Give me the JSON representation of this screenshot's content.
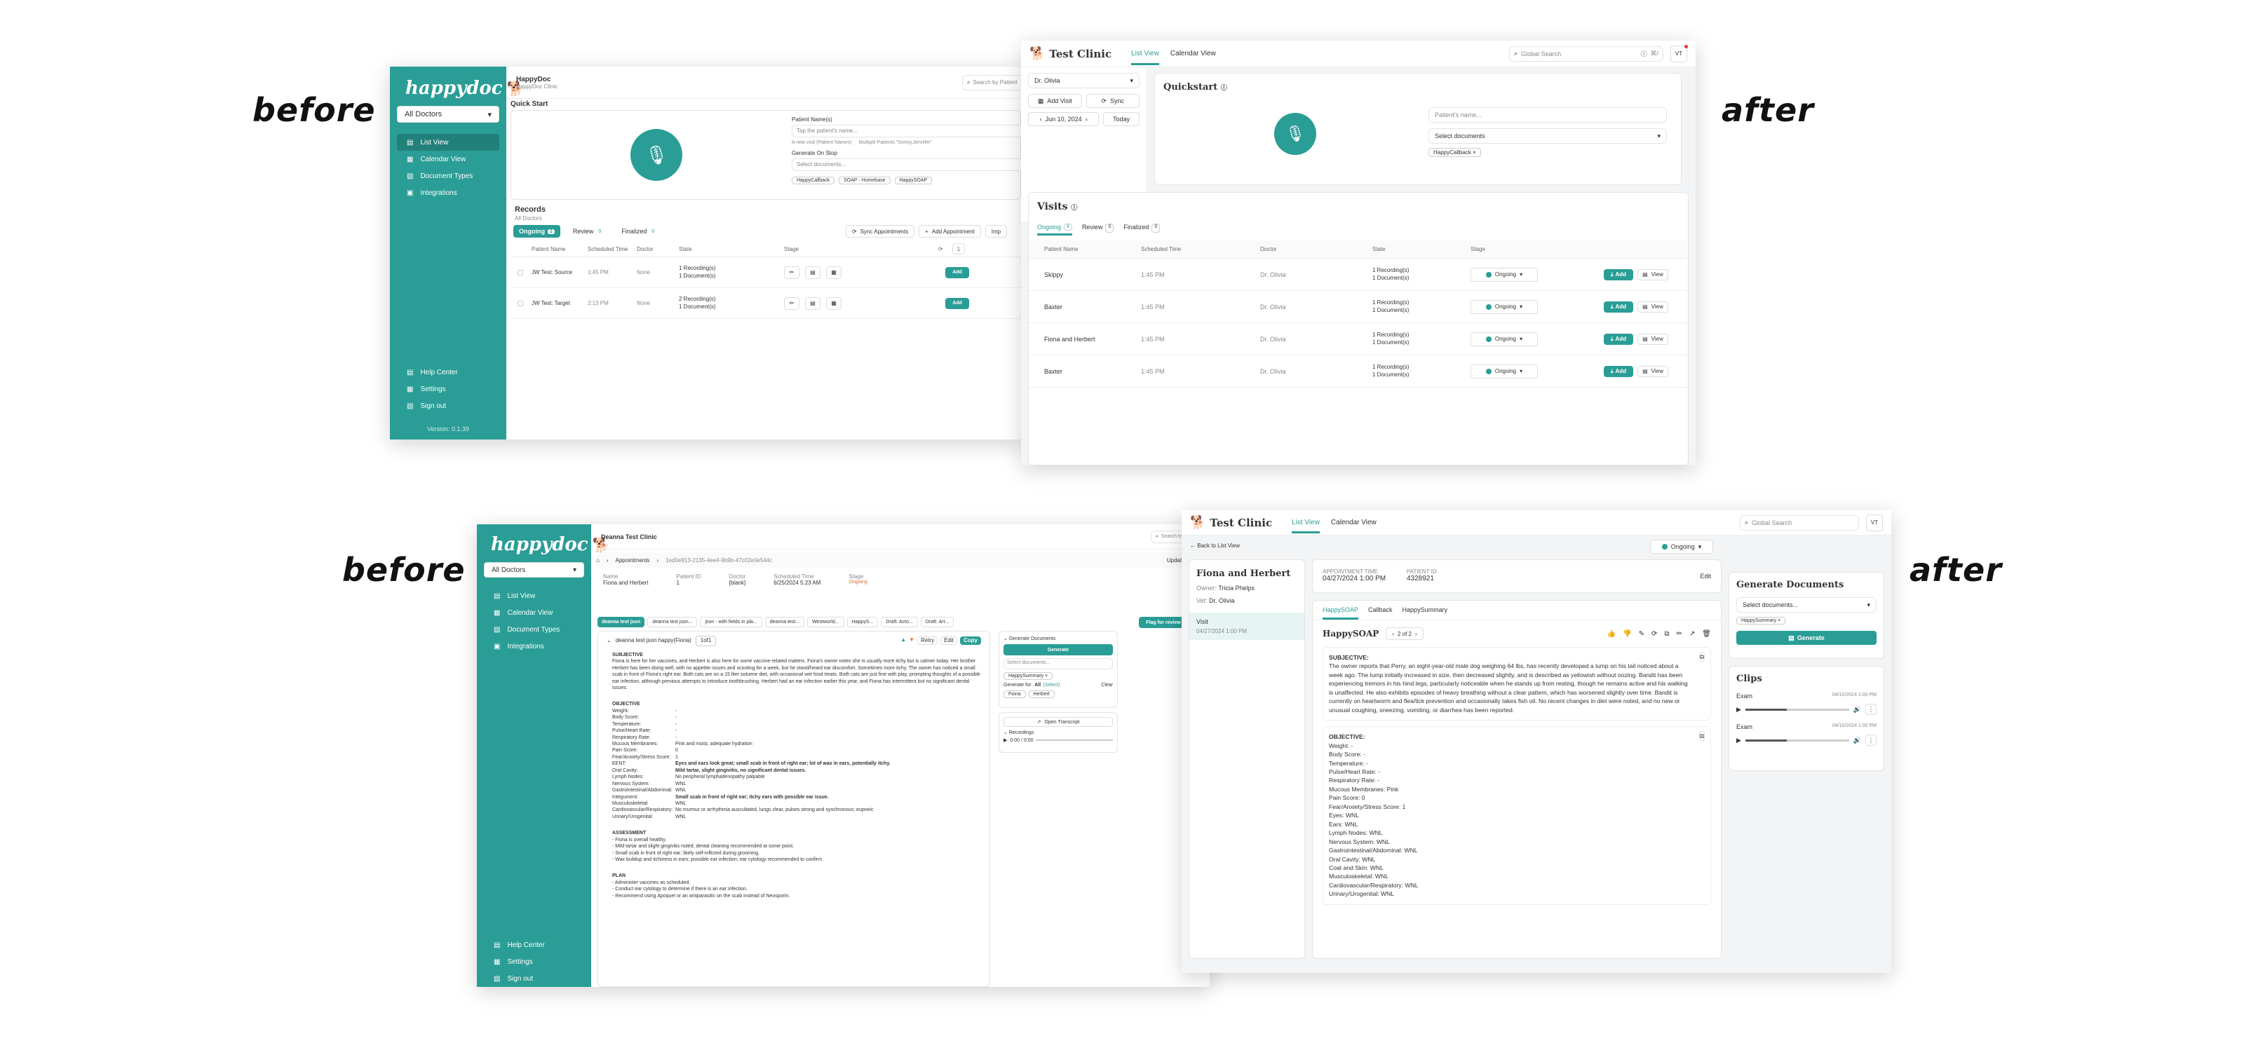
{
  "labels": {
    "before": "before",
    "after": "after"
  },
  "p1": {
    "logo": "happydoc",
    "doctor_select": "All Doctors",
    "nav": [
      {
        "label": "List View"
      },
      {
        "label": "Calendar View"
      },
      {
        "label": "Document Types"
      },
      {
        "label": "Integrations"
      }
    ],
    "nav_bottom": [
      {
        "label": "Help Center"
      },
      {
        "label": "Settings"
      },
      {
        "label": "Sign out"
      }
    ],
    "version": "Version: 0.1.39",
    "header_title": "HappyDoc",
    "header_sub": "HappyDoc Clinic",
    "search_placeholder": "Search by Patient",
    "quickstart": "Quick Start",
    "patient_label": "Patient Name(s)",
    "patient_placeholder": "Tap the patient's name...",
    "radio1": "A new visit (Patient Names)",
    "radio2": "Multiple Patients \"Sonny,Jennifer\"",
    "generate_label": "Generate On Stop",
    "doc_placeholder": "Select documents...",
    "doc_tags": [
      "HappyCallback",
      "SOAP - Homebase",
      "HappySOAP"
    ],
    "records": "Records",
    "records_sub": "All Doctors",
    "tabs": [
      {
        "label": "Ongoing",
        "count": "2"
      },
      {
        "label": "Review",
        "count": "0"
      },
      {
        "label": "Finalized",
        "count": "0"
      }
    ],
    "sync_btn": "Sync Appointments",
    "add_btn": "Add Appointment",
    "import_btn": "Imp",
    "columns": [
      "Patient Name",
      "Scheduled Time",
      "Doctor",
      "State",
      "Stage"
    ],
    "page": "1",
    "rows": [
      {
        "name": "JW Test: Source",
        "time": "1:45 PM",
        "doctor": "None",
        "state1": "1 Recording(s)",
        "state2": "1 Document(s)",
        "add": "Add"
      },
      {
        "name": "JW Test: Target",
        "time": "2:13 PM",
        "doctor": "None",
        "state1": "2 Recording(s)",
        "state2": "1 Document(s)",
        "add": "Add"
      }
    ]
  },
  "p2": {
    "clinic": "Test Clinic",
    "tab_list": "List View",
    "tab_cal": "Calendar View",
    "search_placeholder": "Global Search",
    "shortcut": "⌘/",
    "avatar": "VT",
    "doctor": "Dr. Olivia",
    "add_visit": "Add Visit",
    "sync": "Sync",
    "date": "Jun 10, 2024",
    "today": "Today",
    "quickstart": "Quickstart",
    "patient_placeholder": "Patient's name...",
    "doc_placeholder": "Select documents",
    "doc_tag": "HappyCallback",
    "visits": "Visits",
    "tabs": [
      {
        "label": "Ongoing",
        "count": "4"
      },
      {
        "label": "Review",
        "count": "0"
      },
      {
        "label": "Finalized",
        "count": "0"
      }
    ],
    "columns": [
      "Patient Name",
      "Scheduled Time",
      "Doctor",
      "State",
      "Stage"
    ],
    "rows": [
      {
        "name": "Skippy",
        "time": "1:45 PM",
        "doctor": "Dr. Olivia",
        "state1": "1 Recording(s)",
        "state2": "1 Document(s)",
        "stage": "Ongoing"
      },
      {
        "name": "Baxter",
        "time": "1:45 PM",
        "doctor": "Dr. Olivia",
        "state1": "1 Recording(s)",
        "state2": "1 Document(s)",
        "stage": "Ongoing"
      },
      {
        "name": "Fiona and Herbert",
        "time": "1:45 PM",
        "doctor": "Dr. Olivia",
        "state1": "1 Recording(s)",
        "state2": "1 Document(s)",
        "stage": "Ongoing"
      },
      {
        "name": "Baxter",
        "time": "1:45 PM",
        "doctor": "Dr. Olivia",
        "state1": "1 Recording(s)",
        "state2": "1 Document(s)",
        "stage": "Ongoing"
      }
    ],
    "add": "Add",
    "view": "View"
  },
  "p3": {
    "logo": "happydoc",
    "doctor_select": "All Doctors",
    "nav": [
      {
        "label": "List View"
      },
      {
        "label": "Calendar View"
      },
      {
        "label": "Document Types"
      },
      {
        "label": "Integrations"
      }
    ],
    "nav_bottom": [
      {
        "label": "Help Center"
      },
      {
        "label": "Settings"
      },
      {
        "label": "Sign out"
      }
    ],
    "header_title": "Deanna Test Clinic",
    "search_placeholder": "Search by Patient",
    "crumb1": "Appointments",
    "crumb2": "1ed0e913-2135-4ee4-9b9b-47c02e0e544c",
    "update_stage": "Update Stage:",
    "info": [
      {
        "k": "Name",
        "v": "Fiona and Herbert"
      },
      {
        "k": "Patient ID",
        "v": "1"
      },
      {
        "k": "Doctor",
        "v": "[blank]"
      },
      {
        "k": "Scheduled Time",
        "v": "6/25/2024 5:23 AM"
      },
      {
        "k": "Stage",
        "v": "Ongoing"
      }
    ],
    "doc_tabs": [
      "deanna test json",
      "deanna test json...",
      "json - with fields in pla...",
      "deanna test...",
      "Westworld...",
      "HappyS...",
      "Draft: Acto...",
      "Draft: Art..."
    ],
    "doc_title": "deanna test json happy(Fiona)",
    "doc_pages": "1of1",
    "retry": "Retry",
    "edit": "Edit",
    "copy": "Copy",
    "subjective_h": "SUBJECTIVE",
    "subjective": "Fiona is here for her vaccines, and Herbert is also here for some vaccine-related matters. Fiona's owner notes she is usually more itchy but is calmer today. Her brother Herbert has been doing well, with no appetite issues and scooting for a week, but he stood/heard ear discomfort. Sometimes more itchy. The owner has noticed a small scab in front of Fiona's right ear. Both cats are on a 15 liter soluene diet, with occasional wet food treats. Both cats are just fine with play, prompting thoughts of a possible ear infection, although previous attempts to introduce toothbrushing. Herbert had an ear infection earlier this year, and Fiona has intermittent but no significant dental issues.",
    "objective_h": "OBJECTIVE",
    "objective": [
      {
        "k": "Weight:",
        "v": "-"
      },
      {
        "k": "Body Score:",
        "v": "-"
      },
      {
        "k": "Temperature:",
        "v": "-"
      },
      {
        "k": "Pulse/Heart Rate:",
        "v": "-"
      },
      {
        "k": "Respiratory Rate:",
        "v": "-"
      },
      {
        "k": "Mucous Membranes:",
        "v": "Pink and moist, adequate hydration"
      },
      {
        "k": "Pain Score:",
        "v": "0"
      },
      {
        "k": "Fear/Anxiety/Stress Score:",
        "v": "1"
      },
      {
        "k": "EENT:",
        "v": "Eyes and ears look great; small scab in front of right ear; lot of wax in ears, potentially itchy."
      },
      {
        "k": "Oral Cavity:",
        "v": "Mild tartar, slight gingivitis, no significant dental issues."
      },
      {
        "k": "Lymph Nodes:",
        "v": "No peripheral lymphadenopathy palpable"
      },
      {
        "k": "Nervous System:",
        "v": "WNL"
      },
      {
        "k": "Gastrointestinal/Abdominal:",
        "v": "WNL"
      },
      {
        "k": "Integument:",
        "v": "Small scab in front of right ear; itchy ears with possible ear issue."
      },
      {
        "k": "Musculoskeletal:",
        "v": "WNL"
      },
      {
        "k": "Cardiovascular/Respiratory:",
        "v": "No murmur or arrhythmia auscultated, lungs clear, pulses strong and synchronous; eupneic"
      },
      {
        "k": "Urinary/Urogenital:",
        "v": "WNL"
      }
    ],
    "assessment_h": "ASSESSMENT",
    "assessment": [
      "- Fiona is overall healthy.",
      "- Mild tartar and slight gingivitis noted; dental cleaning recommended at some point.",
      "- Small scab in front of right ear; likely self-inflicted during grooming.",
      "- Wax buildup and itchiness in ears; possible ear infection; ear cytology recommended to confirm."
    ],
    "plan_h": "PLAN",
    "plan": [
      "- Administer vaccines as scheduled.",
      "- Conduct ear cytology to determine if there is an ear infection.",
      "- Recommend using Apoquel or an antiparasitic on the scab instead of Neosporin."
    ],
    "gen_docs": "Generate Documents",
    "generate": "Generate",
    "select_docs": "Select documents...",
    "gen_tag": "HappySummary",
    "gen_for": "Generate for:",
    "gen_all": "All",
    "gen_sel": "(Select)",
    "clear": "Clear",
    "pets": [
      "Fiona",
      "Herbert"
    ],
    "open_transcript": "Open Transcript",
    "recordings": "Recordings",
    "time": "0:00 / 0:00",
    "flag": "Flag for review"
  },
  "p4": {
    "clinic": "Test Clinic",
    "tab_list": "List View",
    "tab_cal": "Calendar View",
    "search_placeholder": "Global Search",
    "avatar": "VT",
    "back": "Back to List View",
    "stage": "Ongoing",
    "patient": "Fiona and Herbert",
    "owner_k": "Owner:",
    "owner_v": "Tricia Phelps",
    "vet_k": "Vet:",
    "vet_v": "Dr. Olivia",
    "visit_label": "Visit",
    "visit_date": "04/27/2024 1:00 PM",
    "appt_k": "APPOINTMENT TIME",
    "appt_v": "04/27/2024 1:00 PM",
    "pid_k": "PATIENT ID",
    "pid_v": "4328921",
    "edit": "Edit",
    "tabs": [
      "HappySOAP",
      "Callback",
      "HappySummary"
    ],
    "doc_title": "HappySOAP",
    "pager": "2 of 2",
    "subjective_h": "SUBJECTIVE:",
    "subjective": "The owner reports that Perry, an eight-year-old male dog weighing 64 lbs, has recently developed a lump on his tail noticed about a week ago. The lump initially increased in size, then decreased slightly, and is described as yellowish without oozing. Bandit has been experiencing tremors in his hind legs, particularly noticeable when he stands up from resting, though he remains active and his walking is unaffected. He also exhibits episodes of heavy breathing without a clear pattern, which has worsened slightly over time. Bandit is currently on heartworm and flea/tick prevention and occasionally takes fish oil. No recent changes in diet were noted, and no new or unusual coughing, sneezing, vomiting, or diarrhea has been reported.",
    "objective_h": "OBJECTIVE:",
    "objective": [
      "Weight: -",
      "Body Score: -",
      "Temperature: -",
      "Pulse/Heart Rate: -",
      "Respiratory Rate: -",
      "Mucous Membranes: Pink",
      "Pain Score: 0",
      "Fear/Anxiety/Stress Score: 1",
      "Eyes: WNL",
      "Ears: WNL",
      "Lymph Nodes: WNL",
      "Nervous System: WNL",
      "Gastrointestinal/Abdominal: WNL",
      "Oral Cavity: WNL",
      "Coat and Skin: WNL",
      "Musculoskeletal: WNL",
      "Cardiovascular/Respiratory: WNL",
      "Urinary/Urogenital: WNL"
    ],
    "gen_docs": "Generate Documents",
    "select_docs": "Select documents...",
    "gen_tag": "HappySummary",
    "generate": "Generate",
    "clips": "Clips",
    "clip_list": [
      {
        "title": "Exam",
        "date": "04/10/2024 1:00 PM"
      },
      {
        "title": "Exam",
        "date": "04/10/2024 1:00 PM"
      }
    ]
  }
}
